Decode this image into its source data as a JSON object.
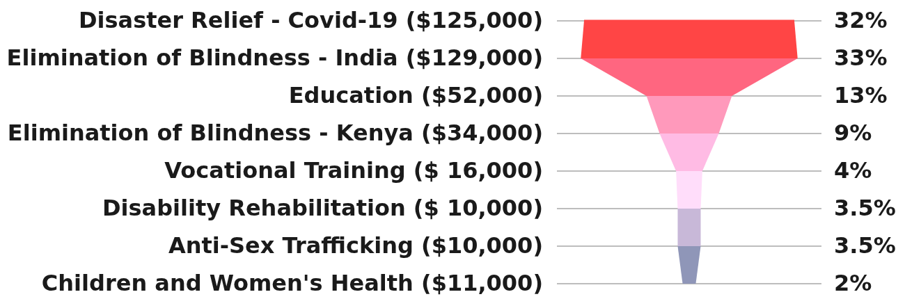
{
  "chart_data": {
    "type": "other",
    "categories": [
      "Disaster Relief - Covid-19 ($125,000)",
      "Elimination of Blindness - India ($129,000)",
      "Education ($52,000)",
      "Elimination of Blindness - Kenya ($34,000)",
      "Vocational Training ($ 16,000)",
      "Disability Rehabilitation ($ 10,000)",
      "Anti-Sex Trafficking ($10,000)",
      "Children and Women's Health ($11,000)"
    ],
    "values": [
      32,
      33,
      13,
      9,
      4,
      3.5,
      3.5,
      2
    ],
    "value_labels": [
      "32%",
      "33%",
      "13%",
      "9%",
      "4%",
      "3.5%",
      "3.5%",
      "2%"
    ],
    "colors": [
      "#ff4545",
      "#ff4545",
      "#ff6680",
      "#ff99bb",
      "#ffbbe4",
      "#ffddfa",
      "#c8b8d8",
      "#8f96b8"
    ]
  }
}
